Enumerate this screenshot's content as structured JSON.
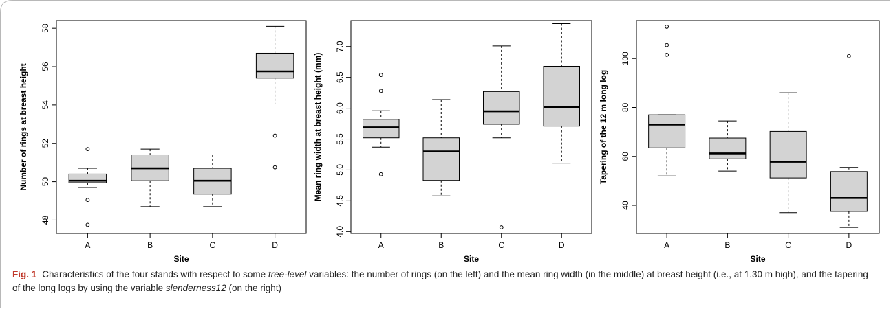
{
  "chart_data": [
    {
      "type": "boxplot",
      "xlabel": "Site",
      "ylabel": "Number of rings at breast height",
      "categories": [
        "A",
        "B",
        "C",
        "D"
      ],
      "yticks": [
        48,
        50,
        52,
        54,
        56,
        58
      ],
      "ylim": [
        47.3,
        58.4
      ],
      "boxes": [
        {
          "category": "A",
          "min": 49.7,
          "q1": 49.95,
          "median": 50.05,
          "q3": 50.4,
          "max": 50.7,
          "outliers": [
            51.7,
            49.05,
            47.75
          ]
        },
        {
          "category": "B",
          "min": 48.7,
          "q1": 50.05,
          "median": 50.7,
          "q3": 51.4,
          "max": 51.7,
          "outliers": []
        },
        {
          "category": "C",
          "min": 48.7,
          "q1": 49.35,
          "median": 50.05,
          "q3": 50.7,
          "max": 51.4,
          "outliers": []
        },
        {
          "category": "D",
          "min": 54.05,
          "q1": 55.4,
          "median": 55.75,
          "q3": 56.7,
          "max": 58.1,
          "outliers": [
            52.4,
            50.75
          ]
        }
      ]
    },
    {
      "type": "boxplot",
      "xlabel": "Site",
      "ylabel": "Mean ring width at breast height (mm)",
      "categories": [
        "A",
        "B",
        "C",
        "D"
      ],
      "yticks": [
        4.0,
        4.5,
        5.0,
        5.5,
        6.0,
        6.5,
        7.0
      ],
      "yticklabels": [
        "4.0",
        "4.5",
        "5.0",
        "5.5",
        "6.0",
        "6.5",
        "7.0"
      ],
      "ylim": [
        3.97,
        7.42
      ],
      "boxes": [
        {
          "category": "A",
          "min": 5.37,
          "q1": 5.52,
          "median": 5.69,
          "q3": 5.82,
          "max": 5.96,
          "outliers": [
            6.54,
            6.28,
            4.93
          ]
        },
        {
          "category": "B",
          "min": 4.58,
          "q1": 4.83,
          "median": 5.3,
          "q3": 5.52,
          "max": 6.14,
          "outliers": []
        },
        {
          "category": "C",
          "min": 5.52,
          "q1": 5.74,
          "median": 5.95,
          "q3": 6.27,
          "max": 7.01,
          "outliers": [
            4.07
          ]
        },
        {
          "category": "D",
          "min": 5.11,
          "q1": 5.71,
          "median": 6.02,
          "q3": 6.68,
          "max": 7.37,
          "outliers": []
        }
      ]
    },
    {
      "type": "boxplot",
      "xlabel": "Site",
      "ylabel": "Tapering of the 12 m long log",
      "categories": [
        "A",
        "B",
        "C",
        "D"
      ],
      "yticks": [
        40,
        60,
        80,
        100
      ],
      "ylim": [
        28.5,
        115.5
      ],
      "boxes": [
        {
          "category": "A",
          "min": 52,
          "q1": 63.5,
          "median": 73,
          "q3": 77,
          "max": 77,
          "outliers": [
            113,
            105.5,
            101.5
          ]
        },
        {
          "category": "B",
          "min": 54,
          "q1": 59,
          "median": 61.2,
          "q3": 67.5,
          "max": 74.5,
          "outliers": []
        },
        {
          "category": "C",
          "min": 37,
          "q1": 51.2,
          "median": 57.8,
          "q3": 70.2,
          "max": 86,
          "outliers": []
        },
        {
          "category": "D",
          "min": 31,
          "q1": 37.5,
          "median": 43,
          "q3": 53.8,
          "max": 55.5,
          "outliers": [
            101
          ]
        }
      ]
    }
  ],
  "caption": {
    "label": "Fig. 1",
    "seg1": "Characteristics of the four stands with respect to some ",
    "em1": "tree-level",
    "seg2": " variables: the number of rings (on the left) and the mean ring width (in the middle) at breast height (i.e., at 1.30 m high), and the tapering of the long logs by using the variable ",
    "em2": "slenderness12",
    "seg3": " (on the right)"
  },
  "colors": {
    "box_fill": "#d3d3d3",
    "stroke": "#000000",
    "caption_label": "#c0392b",
    "frame": "#b8b8b8"
  }
}
